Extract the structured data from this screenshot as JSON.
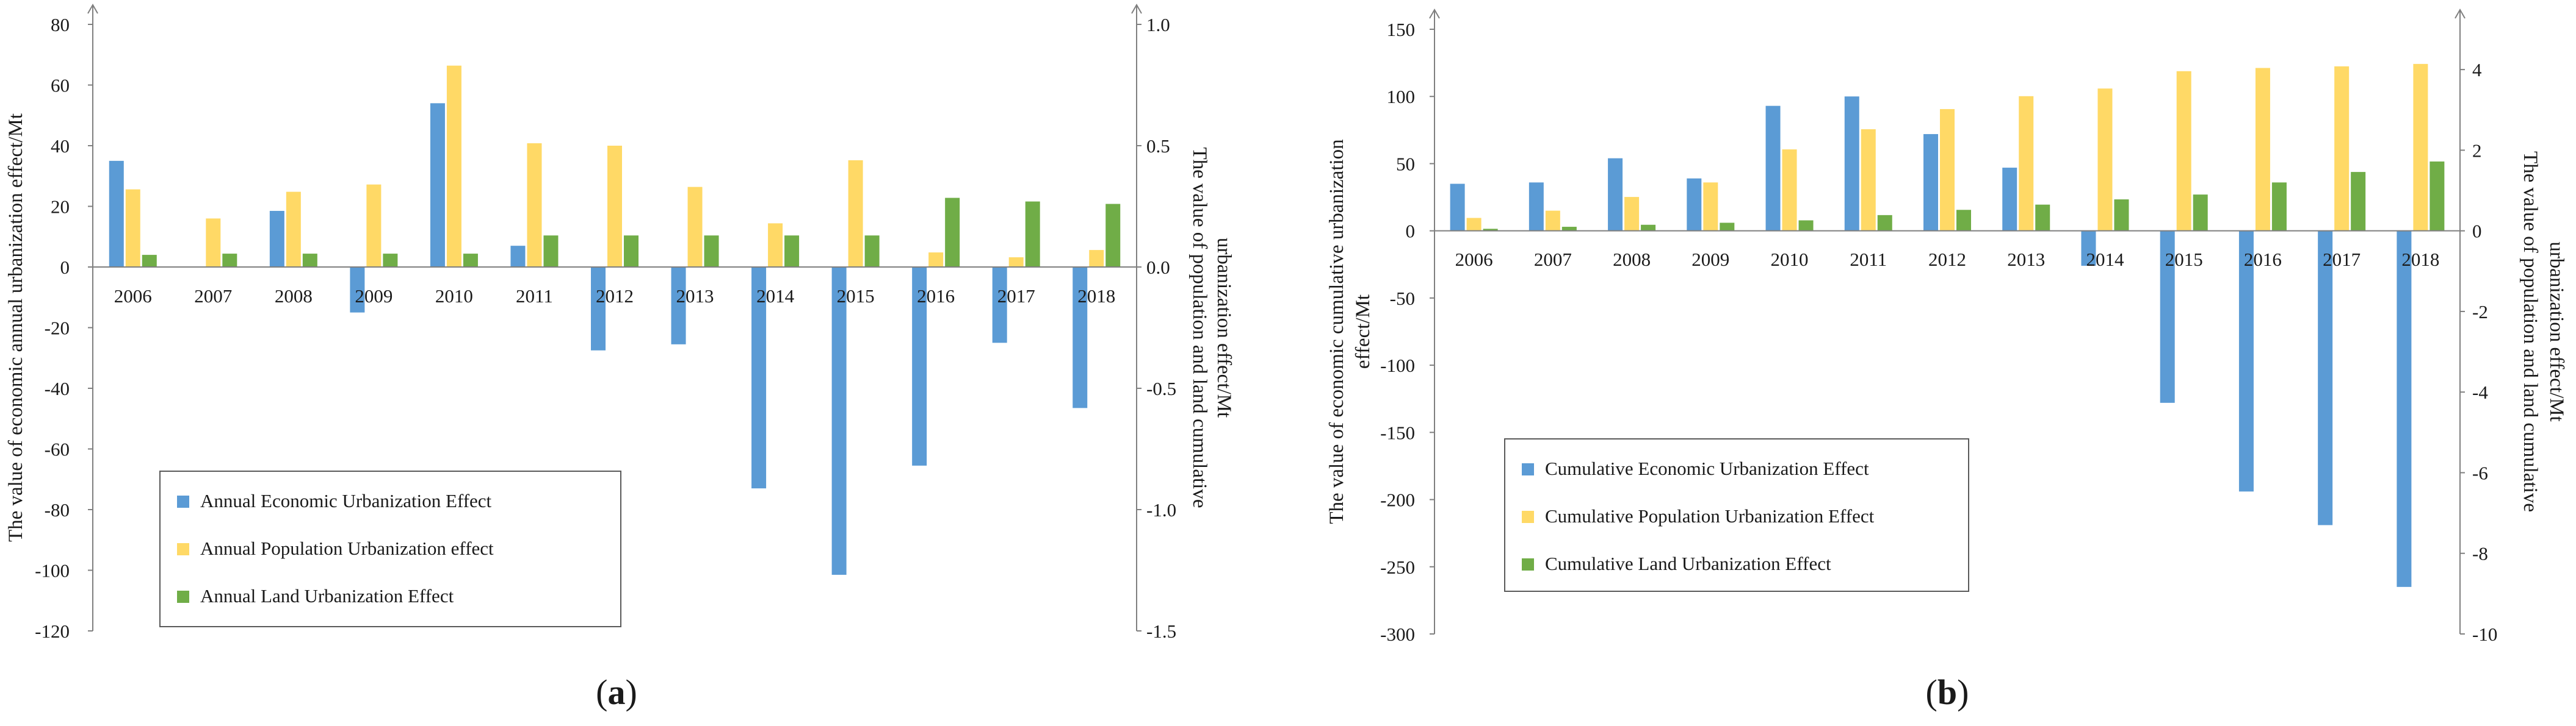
{
  "colors": {
    "economic": "#5b9bd5",
    "population": "#ffd966",
    "land": "#70ad47",
    "axis": "#7f7f7f",
    "text": "#1a1a1a"
  },
  "chart_data": [
    {
      "type": "bar",
      "panel_label": "(a)",
      "panel_letter": "a",
      "categories": [
        "2006",
        "2007",
        "2008",
        "2009",
        "2010",
        "2011",
        "2012",
        "2013",
        "2014",
        "2015",
        "2016",
        "2017",
        "2018"
      ],
      "series": [
        {
          "name": "Annual Economic Urbanization Effect",
          "axis": "left",
          "color_key": "economic",
          "values": [
            35,
            0,
            18.5,
            -15,
            54,
            7,
            -27.5,
            -25.5,
            -73,
            -101.5,
            -65.5,
            -25,
            -46.5
          ]
        },
        {
          "name": "Annual Population Urbanization effect",
          "axis": "right",
          "color_key": "population",
          "values": [
            0.32,
            0.2,
            0.31,
            0.34,
            0.83,
            0.51,
            0.5,
            0.33,
            0.18,
            0.44,
            0.06,
            0.04,
            0.07
          ]
        },
        {
          "name": "Annual Land Urbanization Effect",
          "axis": "right",
          "color_key": "land",
          "values": [
            0.05,
            0.055,
            0.055,
            0.055,
            0.055,
            0.13,
            0.13,
            0.13,
            0.13,
            0.13,
            0.285,
            0.27,
            0.26
          ]
        }
      ],
      "ylabel": "The value of economic annual urbanization effect/Mt",
      "y2label_lines": [
        "The value of population and land cumulative",
        "urbanization effect/Mt"
      ],
      "ylim": [
        -120,
        80
      ],
      "yticks": [
        -120,
        -100,
        -80,
        -60,
        -40,
        -20,
        0,
        20,
        40,
        60,
        80
      ],
      "ytick_labels": [
        "-120",
        "-100",
        "-80",
        "-60",
        "-40",
        "-20",
        "0",
        "20",
        "40",
        "60",
        "80"
      ],
      "y2lim": [
        -1.5,
        1.0
      ],
      "y2ticks": [
        -1.5,
        -1.0,
        -0.5,
        0.0,
        0.5,
        1.0
      ],
      "y2tick_labels": [
        "-1.5",
        "-1.0",
        "-0.5",
        "0.0",
        "0.5",
        "1.0"
      ],
      "legend_position": "lower-left",
      "grid": false
    },
    {
      "type": "bar",
      "panel_label": "(b)",
      "panel_letter": "b",
      "categories": [
        "2006",
        "2007",
        "2008",
        "2009",
        "2010",
        "2011",
        "2012",
        "2013",
        "2014",
        "2015",
        "2016",
        "2017",
        "2018"
      ],
      "series": [
        {
          "name": "Cumulative Economic Urbanization Effect",
          "axis": "left",
          "color_key": "economic",
          "values": [
            35,
            36,
            54,
            39,
            93,
            100,
            72,
            47,
            -26,
            -128,
            -194,
            -219,
            -265
          ]
        },
        {
          "name": "Cumulative Population Urbanization Effect",
          "axis": "right",
          "color_key": "population",
          "values": [
            0.32,
            0.5,
            0.84,
            1.2,
            2.02,
            2.52,
            3.02,
            3.34,
            3.53,
            3.96,
            4.04,
            4.08,
            4.14
          ]
        },
        {
          "name": "Cumulative Land Urbanization Effect",
          "axis": "right",
          "color_key": "land",
          "values": [
            0.05,
            0.1,
            0.15,
            0.2,
            0.26,
            0.39,
            0.52,
            0.65,
            0.78,
            0.9,
            1.2,
            1.46,
            1.72
          ]
        }
      ],
      "ylabel_lines": [
        "The value of economic cumulative urbanization",
        "effect/Mt"
      ],
      "y2label_lines": [
        "The value of population and land cumulative",
        "urbanization effect/Mt"
      ],
      "ylim": [
        -300,
        150
      ],
      "yticks": [
        -300,
        -250,
        -200,
        -150,
        -100,
        -50,
        0,
        50,
        100,
        150
      ],
      "ytick_labels": [
        "-300",
        "-250",
        "-200",
        "-150",
        "-100",
        "-50",
        "0",
        "50",
        "100",
        "150"
      ],
      "y2lim": [
        -10,
        5
      ],
      "y2ticks": [
        -10,
        -8,
        -6,
        -4,
        -2,
        0,
        2,
        4
      ],
      "y2tick_labels": [
        "-10",
        "-8",
        "-6",
        "-4",
        "-2",
        "0",
        "2",
        "4"
      ],
      "legend_position": "lower-left",
      "grid": false
    }
  ]
}
